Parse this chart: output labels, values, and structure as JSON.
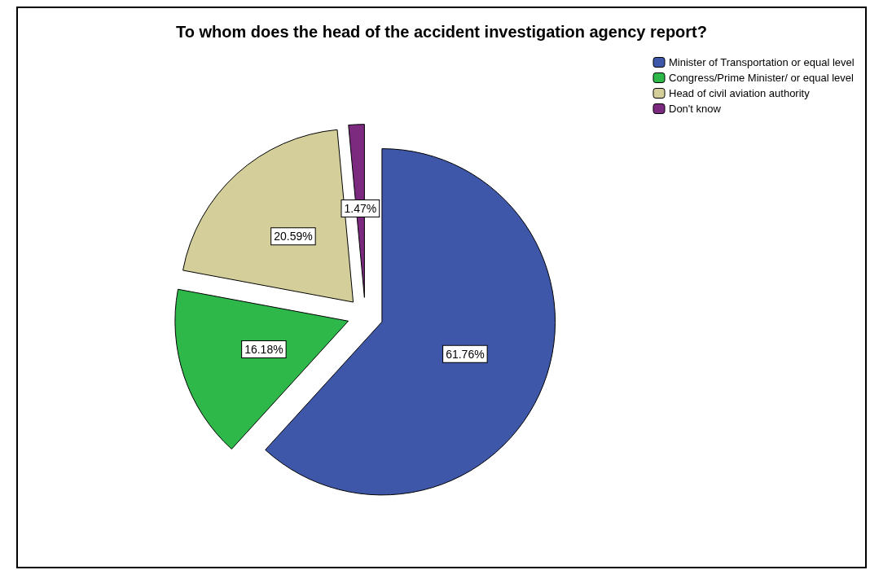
{
  "chart_data": {
    "type": "pie",
    "title": "To whom does the head of the accident investigation agency report?",
    "categories": [
      "Minister of Transportation or equal level",
      "Congress/Prime Minister/ or equal level",
      "Head of civil aviation authority",
      "Don't know"
    ],
    "values": [
      61.76,
      16.18,
      20.59,
      1.47
    ],
    "colors": [
      "#3f57a9",
      "#2eb84a",
      "#d4cf9a",
      "#7b2a7f"
    ],
    "value_labels": [
      "61.76%",
      "16.18%",
      "20.59%",
      "1.47%"
    ],
    "legend": "top right"
  }
}
